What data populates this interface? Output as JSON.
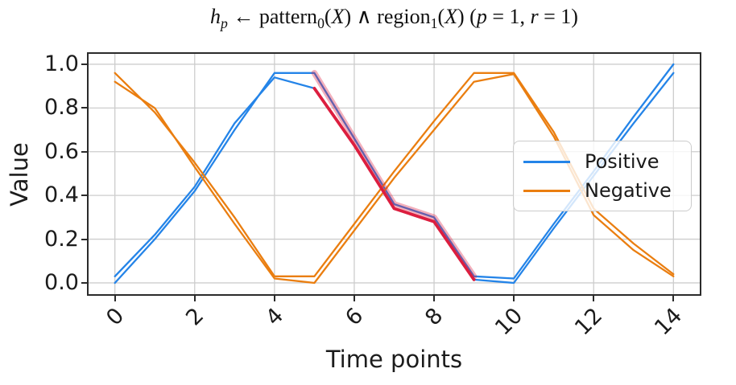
{
  "figure": {
    "title_plain": "h_p ← pattern_0(X) ∧ region_1(X) (p = 1, r = 1)",
    "title_parts": [
      {
        "text": "h",
        "style": "italic"
      },
      {
        "text": "p",
        "style": "italic-sub"
      },
      {
        "text": " ← pattern",
        "style": "normal"
      },
      {
        "text": "0",
        "style": "sub"
      },
      {
        "text": "(",
        "style": "normal"
      },
      {
        "text": "X",
        "style": "italic"
      },
      {
        "text": ") ∧ region",
        "style": "normal"
      },
      {
        "text": "1",
        "style": "sub"
      },
      {
        "text": "(",
        "style": "normal"
      },
      {
        "text": "X",
        "style": "italic"
      },
      {
        "text": ") (",
        "style": "normal"
      },
      {
        "text": "p",
        "style": "italic"
      },
      {
        "text": " = 1, ",
        "style": "normal"
      },
      {
        "text": "r",
        "style": "italic"
      },
      {
        "text": " = 1)",
        "style": "normal"
      }
    ]
  },
  "legend": {
    "items": [
      {
        "label": "Positive",
        "color": "#2484e8"
      },
      {
        "label": "Negative",
        "color": "#ea7e10"
      }
    ]
  },
  "colors": {
    "positive": "#2484e8",
    "negative": "#ea7e10",
    "highlight_outer": "rgba(222,28,64,0.35)",
    "highlight_inner": "#dc1e3f",
    "grid": "#cdcdcd",
    "spine": "#2b2b2b"
  },
  "chart_data": {
    "type": "line",
    "title": "h_p <- pattern_0(X) AND region_1(X) (p = 1, r = 1)",
    "xlabel": "Time points",
    "ylabel": "Value",
    "grid": true,
    "legend_position": "center right",
    "xlim": [
      -0.7,
      14.7
    ],
    "ylim": [
      -0.059,
      1.055
    ],
    "xticks": [
      0,
      2,
      4,
      6,
      8,
      10,
      12,
      14
    ],
    "xtick_labels": [
      "0",
      "2",
      "4",
      "6",
      "8",
      "10",
      "12",
      "14"
    ],
    "yticks": [
      0.0,
      0.2,
      0.4,
      0.6,
      0.8,
      1.0
    ],
    "ytick_labels": [
      "0.0",
      "0.2",
      "0.4",
      "0.6",
      "0.8",
      "1.0"
    ],
    "x": [
      0,
      1,
      2,
      3,
      4,
      5,
      6,
      7,
      8,
      9,
      10,
      11,
      12,
      13,
      14
    ],
    "series": [
      {
        "name": "positive-sample-1",
        "legend": "Positive",
        "color": "#2484e8",
        "width": 2.3,
        "values": [
          0.0,
          0.2,
          0.42,
          0.7,
          0.96,
          0.96,
          0.66,
          0.36,
          0.3,
          0.03,
          0.02,
          0.27,
          0.51,
          0.76,
          1.0
        ]
      },
      {
        "name": "positive-sample-2",
        "legend": "Positive",
        "color": "#2484e8",
        "width": 2.3,
        "values": [
          0.03,
          0.22,
          0.44,
          0.73,
          0.94,
          0.89,
          0.63,
          0.34,
          0.28,
          0.015,
          0.0,
          0.25,
          0.49,
          0.73,
          0.96
        ]
      },
      {
        "name": "negative-sample-1",
        "legend": "Negative",
        "color": "#ea7e10",
        "width": 2.3,
        "values": [
          0.96,
          0.78,
          0.55,
          0.3,
          0.03,
          0.03,
          0.27,
          0.51,
          0.74,
          0.96,
          0.96,
          0.69,
          0.34,
          0.18,
          0.04
        ]
      },
      {
        "name": "negative-sample-2",
        "legend": "Negative",
        "color": "#ea7e10",
        "width": 2.3,
        "values": [
          0.92,
          0.8,
          0.53,
          0.27,
          0.02,
          0.0,
          0.24,
          0.48,
          0.7,
          0.92,
          0.955,
          0.67,
          0.31,
          0.15,
          0.03
        ]
      }
    ],
    "highlights": [
      {
        "name": "matched-region-outer",
        "color": "rgba(222,28,64,0.35)",
        "width": 7.5,
        "x": [
          5,
          6,
          7,
          8,
          9
        ],
        "values": [
          0.96,
          0.66,
          0.36,
          0.3,
          0.03
        ]
      },
      {
        "name": "matched-region-inner",
        "color": "#dc1e3f",
        "width": 3.8,
        "x": [
          5,
          6,
          7,
          8,
          9
        ],
        "values": [
          0.89,
          0.63,
          0.34,
          0.28,
          0.015
        ]
      }
    ]
  }
}
